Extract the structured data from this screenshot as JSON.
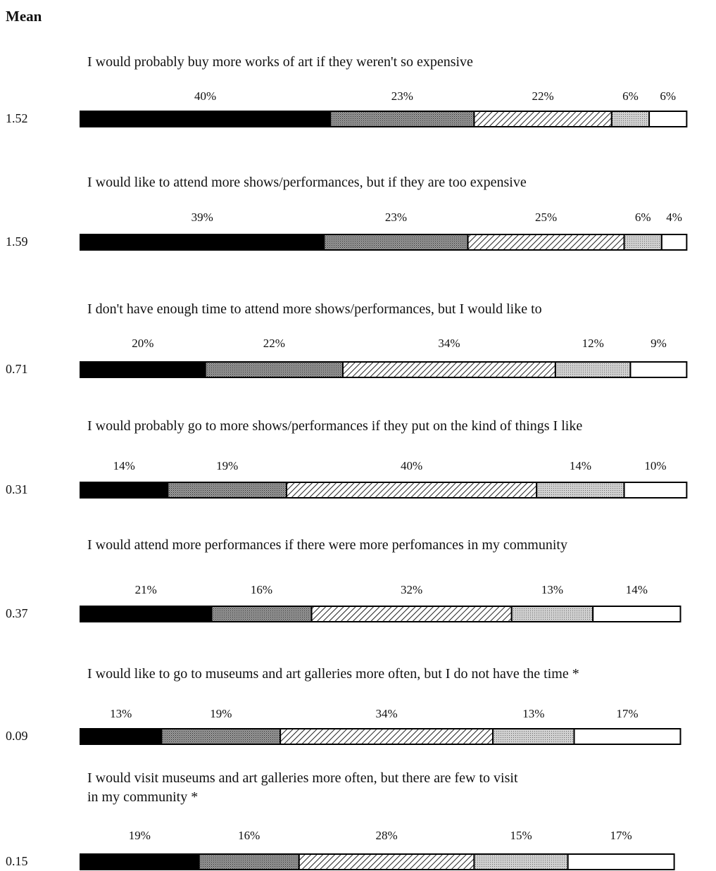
{
  "chart_data": {
    "type": "bar",
    "stacked": true,
    "orientation": "horizontal",
    "mean_header": "Mean",
    "questions": [
      {
        "text": [
          "I would probably buy more works of art if they weren't so expensive"
        ],
        "mean": "1.52",
        "values": [
          40,
          23,
          22,
          6,
          6
        ],
        "labels": [
          "40%",
          "23%",
          "22%",
          "6%",
          "6%"
        ]
      },
      {
        "text": [
          "I would like to attend more shows/performances, but if they are too expensive"
        ],
        "mean": "1.59",
        "values": [
          39,
          23,
          25,
          6,
          4
        ],
        "labels": [
          "39%",
          "23%",
          "25%",
          "6%",
          "4%"
        ]
      },
      {
        "text": [
          "I don't have enough time to attend more shows/performances, but I would like to"
        ],
        "mean": "0.71",
        "values": [
          20,
          22,
          34,
          12,
          9
        ],
        "labels": [
          "20%",
          "22%",
          "34%",
          "12%",
          "9%"
        ]
      },
      {
        "text": [
          "I would probably go to more shows/performances if they put on the kind of things I like"
        ],
        "mean": "0.31",
        "values": [
          14,
          19,
          40,
          14,
          10
        ],
        "labels": [
          "14%",
          "19%",
          "40%",
          "14%",
          "10%"
        ]
      },
      {
        "text": [
          "I would attend more performances if there were more perfomances in my community"
        ],
        "mean": "0.37",
        "values": [
          21,
          16,
          32,
          13,
          14
        ],
        "labels": [
          "21%",
          "16%",
          "32%",
          "13%",
          "14%"
        ]
      },
      {
        "text": [
          "I would like to go to museums and art galleries more often, but I do not have the time *"
        ],
        "mean": "0.09",
        "values": [
          13,
          19,
          34,
          13,
          17
        ],
        "labels": [
          "13%",
          "19%",
          "34%",
          "13%",
          "17%"
        ]
      },
      {
        "text": [
          "I would visit museums and art galleries more often, but there are few to visit",
          "in my community *"
        ],
        "mean": "0.15",
        "values": [
          19,
          16,
          28,
          15,
          17
        ],
        "labels": [
          "19%",
          "16%",
          "28%",
          "15%",
          "17%"
        ]
      }
    ],
    "segment_fills": [
      "solid-black",
      "dense-dots",
      "diagonal-hatch",
      "light-dots",
      "white"
    ]
  }
}
